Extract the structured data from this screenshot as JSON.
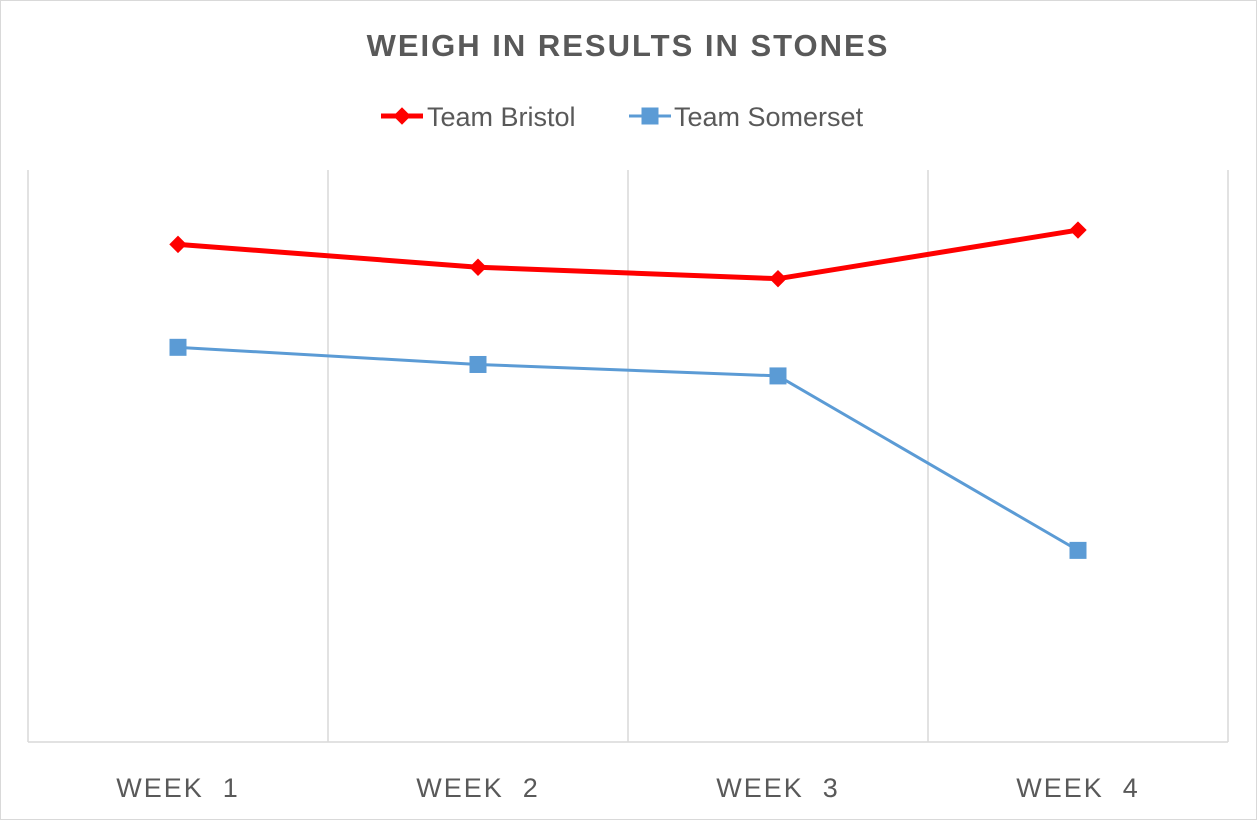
{
  "chart_data": {
    "type": "line",
    "title": "WEIGH IN RESULTS IN STONES",
    "xlabel": "",
    "ylabel": "",
    "categories": [
      "WEEK  1",
      "WEEK  2",
      "WEEK  3",
      "WEEK  4"
    ],
    "ylim": [
      0,
      20
    ],
    "grid": "vertical",
    "legend_position": "top",
    "series": [
      {
        "name": "Team Bristol",
        "values": [
          17.4,
          16.6,
          16.2,
          17.9
        ],
        "color": "#ff0000",
        "marker": "diamond"
      },
      {
        "name": "Team Somerset",
        "values": [
          13.8,
          13.2,
          12.8,
          6.7
        ],
        "color": "#5b9bd5",
        "marker": "square"
      }
    ]
  }
}
